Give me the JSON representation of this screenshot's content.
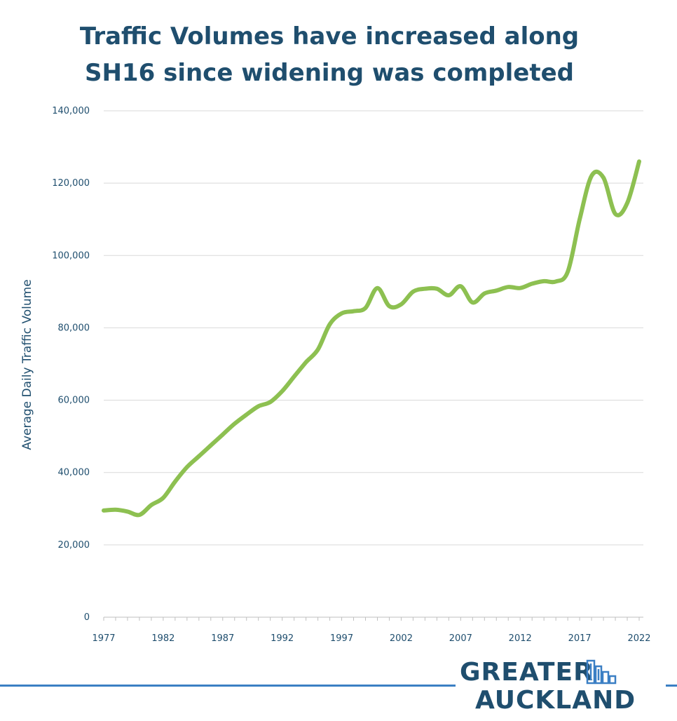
{
  "title_lines": [
    "Traffic Volumes have increased along",
    "SH16 since widening was completed"
  ],
  "logo": {
    "line1": "GREATER",
    "line2": "AUCKLAND"
  },
  "colors": {
    "line": "#8dc051",
    "text": "#1f4e6e",
    "grid": "#d9d9d9",
    "footer_rule": "#3b7fc4"
  },
  "chart_data": {
    "type": "line",
    "title": "Traffic Volumes have increased along SH16 since widening was completed",
    "xlabel": "",
    "ylabel": "Average Daily Traffic Volume",
    "xlim": [
      1977,
      2022
    ],
    "ylim": [
      0,
      140000
    ],
    "x_ticks": [
      1977,
      1982,
      1987,
      1992,
      1997,
      2002,
      2007,
      2012,
      2017,
      2022
    ],
    "y_ticks": [
      0,
      20000,
      40000,
      60000,
      80000,
      100000,
      120000,
      140000
    ],
    "y_tick_labels": [
      "0",
      "20,000",
      "40,000",
      "60,000",
      "80,000",
      "100,000",
      "120,000",
      "140,000"
    ],
    "grid": "horizontal",
    "series": [
      {
        "x": [
          1977,
          1978,
          1979,
          1980,
          1981,
          1982,
          1983,
          1984,
          1985,
          1986,
          1987,
          1988,
          1989,
          1990,
          1991,
          1992,
          1993,
          1994,
          1995,
          1996,
          1997,
          1998,
          1999,
          2000,
          2001,
          2002,
          2003,
          2004,
          2005,
          2006,
          2007,
          2008,
          2009,
          2010,
          2011,
          2012,
          2013,
          2014,
          2015,
          2016,
          2017,
          2018,
          2019,
          2020,
          2021,
          2022
        ],
        "values": [
          29500,
          29700,
          29200,
          28300,
          31000,
          33000,
          37500,
          41500,
          44500,
          47500,
          50500,
          53500,
          56000,
          58300,
          59500,
          62500,
          66500,
          70500,
          74000,
          81000,
          84000,
          84600,
          85500,
          91000,
          86000,
          86500,
          90000,
          90800,
          90800,
          89000,
          91500,
          87000,
          89500,
          90300,
          91300,
          91000,
          92200,
          92900,
          92800,
          95500,
          110000,
          122000,
          121500,
          111500,
          114500,
          126000
        ]
      }
    ]
  }
}
